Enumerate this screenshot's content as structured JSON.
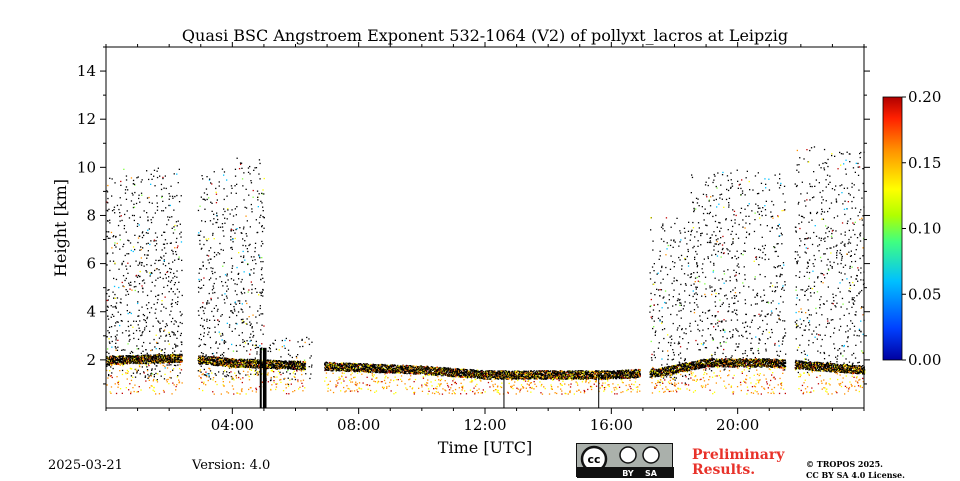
{
  "chart_data": {
    "type": "heatmap",
    "title": "Quasi BSC Angstroem Exponent 532-1064 (V2) of pollyxt_lacros at Leipzig",
    "xlabel": "Time [UTC]",
    "ylabel": "Height [km]",
    "xlim": [
      0,
      24
    ],
    "ylim": [
      0,
      15
    ],
    "x_ticks": [
      {
        "value": 4,
        "label": "04:00"
      },
      {
        "value": 8,
        "label": "08:00"
      },
      {
        "value": 12,
        "label": "12:00"
      },
      {
        "value": 16,
        "label": "16:00"
      },
      {
        "value": 20,
        "label": "20:00"
      }
    ],
    "y_ticks": [
      {
        "value": 2,
        "label": "2"
      },
      {
        "value": 4,
        "label": "4"
      },
      {
        "value": 6,
        "label": "6"
      },
      {
        "value": 8,
        "label": "8"
      },
      {
        "value": 10,
        "label": "10"
      },
      {
        "value": 12,
        "label": "12"
      },
      {
        "value": 14,
        "label": "14"
      }
    ],
    "colorbar": {
      "range": [
        0,
        0.2
      ],
      "colormap": "jet",
      "ticks": [
        {
          "value": 0.0,
          "label": "0.00"
        },
        {
          "value": 0.05,
          "label": "0.05"
        },
        {
          "value": 0.1,
          "label": "0.10"
        },
        {
          "value": 0.15,
          "label": "0.15"
        },
        {
          "value": 0.2,
          "label": "0.20"
        }
      ]
    },
    "scatter_regions": [
      {
        "t0": 0.0,
        "t1": 2.4,
        "h0": 1.2,
        "h1": 10.0,
        "density": 0.55
      },
      {
        "t0": 2.9,
        "t1": 5.0,
        "h0": 1.2,
        "h1": 10.5,
        "density": 0.5
      },
      {
        "t0": 5.0,
        "t1": 6.5,
        "h0": 1.0,
        "h1": 3.0,
        "density": 0.4
      },
      {
        "t0": 17.2,
        "t1": 18.5,
        "h0": 1.0,
        "h1": 8.0,
        "density": 0.45
      },
      {
        "t0": 18.5,
        "t1": 21.5,
        "h0": 1.5,
        "h1": 10.0,
        "density": 0.45
      },
      {
        "t0": 21.8,
        "t1": 24.0,
        "h0": 1.5,
        "h1": 11.0,
        "density": 0.45
      }
    ],
    "layer_points": [
      {
        "t": 0.0,
        "h": 2.0
      },
      {
        "t": 2.4,
        "h": 2.1
      },
      {
        "t": 4.0,
        "h": 1.9
      },
      {
        "t": 6.0,
        "h": 1.8
      },
      {
        "t": 8.0,
        "h": 1.7
      },
      {
        "t": 10.0,
        "h": 1.6
      },
      {
        "t": 12.0,
        "h": 1.4
      },
      {
        "t": 14.0,
        "h": 1.4
      },
      {
        "t": 16.0,
        "h": 1.4
      },
      {
        "t": 17.5,
        "h": 1.5
      },
      {
        "t": 19.0,
        "h": 1.9
      },
      {
        "t": 21.0,
        "h": 1.9
      },
      {
        "t": 24.0,
        "h": 1.6
      }
    ],
    "data_gaps": [
      [
        2.4,
        2.9
      ],
      [
        6.3,
        6.9
      ],
      [
        16.9,
        17.2
      ],
      [
        21.5,
        21.8
      ]
    ]
  },
  "footer": {
    "date": "2025-03-21",
    "version": "Version: 4.0",
    "preliminary_line1": "Preliminary",
    "preliminary_line2": "Results.",
    "copyright_line1": "© TROPOS 2025.",
    "copyright_line2": "CC BY SA 4.0 License.",
    "cc_labels": {
      "by": "BY",
      "sa": "SA",
      "cc": "cc"
    }
  }
}
